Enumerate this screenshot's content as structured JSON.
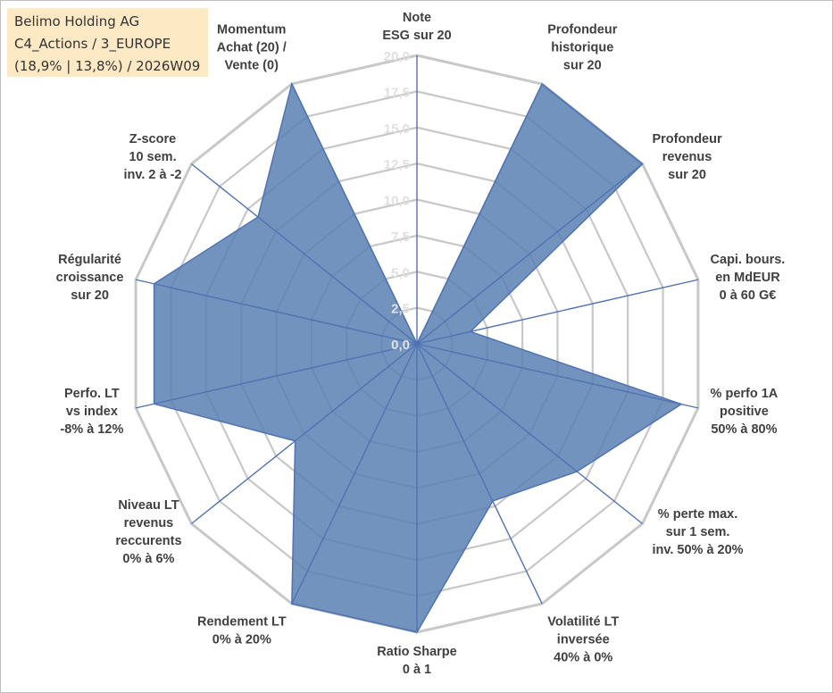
{
  "title_box": {
    "line1": "Belimo Holding AG",
    "line2": "C4_Actions / 3_EUROPE",
    "line3": "(18,9% | 13,8%) / 2026W09"
  },
  "colors": {
    "series_fill": "#5b80b4",
    "series_line": "#4f73b2",
    "grid": "#c8c8c8",
    "title_bg": "#fde9c4",
    "tick_text": "#e0e0e0"
  },
  "chart_data": {
    "type": "radar",
    "title": "",
    "rmin": 0,
    "rmax": 20,
    "grid": true,
    "ticks": [
      "0,0",
      "2,5",
      "5,0",
      "7,5",
      "10,0",
      "12,5",
      "15,0",
      "17,5",
      "20,0"
    ],
    "axes": [
      {
        "label": [
          "Note",
          "ESG sur 20"
        ]
      },
      {
        "label": [
          "Profondeur",
          "historique",
          "sur 20"
        ]
      },
      {
        "label": [
          "Profondeur",
          "revenus",
          "sur 20"
        ]
      },
      {
        "label": [
          "Capi. bours.",
          "en MdEUR",
          "0 à 60 G€"
        ]
      },
      {
        "label": [
          "% perfo 1A",
          "positive",
          "50% à 80%"
        ]
      },
      {
        "label": [
          "% perte max.",
          "sur 1 sem.",
          "inv. 50% à 20%"
        ]
      },
      {
        "label": [
          "Volatilité LT",
          "inversée",
          "40% à 0%"
        ]
      },
      {
        "label": [
          "Ratio Sharpe",
          "0 à 1"
        ]
      },
      {
        "label": [
          "Rendement LT",
          "0% à 20%"
        ]
      },
      {
        "label": [
          "Niveau LT",
          "revenus",
          "reccurents",
          "0% à 6%"
        ]
      },
      {
        "label": [
          "Perfo. LT",
          "vs index",
          "-8% à 12%"
        ]
      },
      {
        "label": [
          "Régularité",
          "croissance",
          "sur 20"
        ]
      },
      {
        "label": [
          "Z-score",
          "10 sem.",
          "inv. 2 à -2"
        ]
      },
      {
        "label": [
          "Momentum",
          "Achat (20) /",
          "Vente (0)"
        ]
      }
    ],
    "series": [
      {
        "values": [
          0,
          20,
          20,
          3.8,
          18.8,
          14.2,
          12.1,
          20,
          20,
          10.8,
          18.7,
          18.7,
          14.1,
          20
        ]
      }
    ]
  }
}
